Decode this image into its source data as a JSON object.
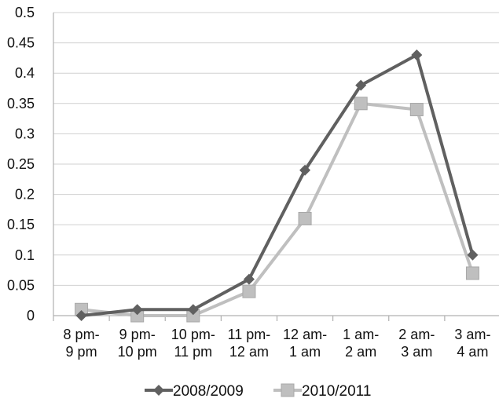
{
  "chart_data": {
    "type": "line",
    "categories": [
      "8 pm-\n9 pm",
      "9 pm-\n10 pm",
      "10 pm-\n11 pm",
      "11 pm-\n12 am",
      "12 am-\n1 am",
      "1 am-\n2 am",
      "2 am-\n3 am",
      "3 am-\n4 am"
    ],
    "ylim": [
      0,
      0.5
    ],
    "yticks": [
      "0",
      "0.05",
      "0.1",
      "0.15",
      "0.2",
      "0.25",
      "0.3",
      "0.35",
      "0.4",
      "0.45",
      "0.5"
    ],
    "grid": true,
    "legend_position": "bottom",
    "series": [
      {
        "name": "2008/2009",
        "marker": "diamond",
        "color": "#606060",
        "values": [
          0.0,
          0.01,
          0.01,
          0.06,
          0.24,
          0.38,
          0.43,
          0.1
        ]
      },
      {
        "name": "2010/2011",
        "marker": "square",
        "color": "#bfbfbf",
        "values": [
          0.01,
          0.0,
          0.0,
          0.04,
          0.16,
          0.35,
          0.34,
          0.07
        ]
      }
    ]
  }
}
